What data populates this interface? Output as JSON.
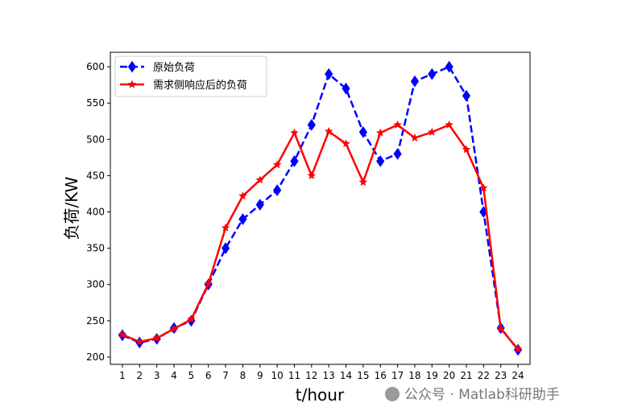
{
  "chart_data": {
    "type": "line",
    "xlabel": "t/hour",
    "ylabel": "负荷/KW",
    "x": [
      1,
      2,
      3,
      4,
      5,
      6,
      7,
      8,
      9,
      10,
      11,
      12,
      13,
      14,
      15,
      16,
      17,
      18,
      19,
      20,
      21,
      22,
      23,
      24
    ],
    "xlim": [
      0.3,
      24.7
    ],
    "ylim": [
      190,
      620
    ],
    "yticks": [
      200,
      250,
      300,
      350,
      400,
      450,
      500,
      550,
      600
    ],
    "grid": false,
    "legend_position": "top-left",
    "series": [
      {
        "name": "原始负荷",
        "color": "#0000ff",
        "line_style": "dashed",
        "marker": "diamond",
        "values": [
          230,
          220,
          225,
          240,
          250,
          300,
          350,
          390,
          410,
          430,
          470,
          520,
          590,
          570,
          510,
          470,
          480,
          580,
          590,
          600,
          560,
          400,
          240,
          210
        ]
      },
      {
        "name": "需求侧响应后的负荷",
        "color": "#ff0000",
        "line_style": "solid",
        "marker": "star",
        "values": [
          231,
          221,
          226,
          239,
          252,
          301,
          378,
          422,
          444,
          465,
          509,
          450,
          511,
          494,
          441,
          509,
          520,
          502,
          510,
          520,
          486,
          433,
          239,
          211
        ]
      }
    ]
  },
  "watermark": {
    "text": "公众号 · Matlab科研助手",
    "icon": "wechat-icon"
  }
}
